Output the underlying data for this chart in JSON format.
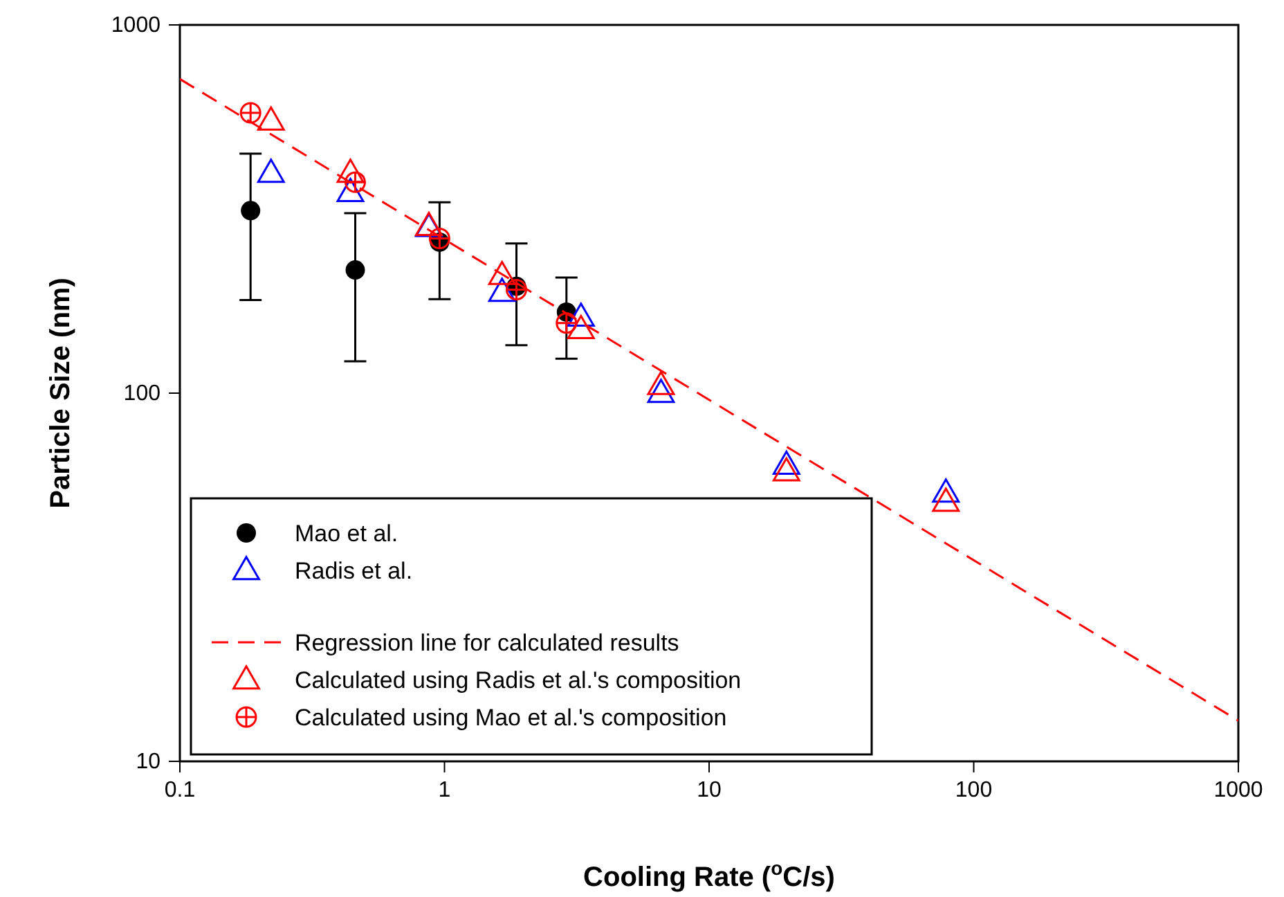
{
  "chart_data": {
    "type": "scatter",
    "xlabel": "Cooling Rate ($^{o}$C/s)",
    "ylabel": "Particle Size (nm)",
    "log": "xy",
    "xlim": [
      0.1,
      1000
    ],
    "ylim": [
      10,
      1000
    ],
    "xticks": [
      0.1,
      1,
      10,
      100,
      1000
    ],
    "yticks": [
      10,
      100,
      1000
    ],
    "grid": false,
    "legend": "bottom left",
    "series": [
      {
        "name": "Mao et al.",
        "color": "#000000",
        "marker": "circle",
        "x": [
          0.185,
          0.46,
          0.958,
          1.87,
          2.89
        ],
        "values": [
          313,
          216,
          257,
          195,
          166
        ],
        "errors": [
          [
            179,
            447
          ],
          [
            122,
            308
          ],
          [
            180,
            330
          ],
          [
            135,
            255
          ],
          [
            124,
            206
          ]
        ]
      },
      {
        "name": "Radis et al.",
        "color": "#0000ff",
        "marker": "triangle",
        "x": [
          0.221,
          0.441,
          0.873,
          1.65,
          3.28,
          6.58,
          19.6,
          78.5
        ],
        "values": [
          396,
          351,
          282,
          188,
          161,
          100,
          63.8,
          53.6
        ]
      },
      {
        "name": "Regression line for calculated results",
        "type": "line",
        "line_style": "dashed",
        "marker": "none",
        "color": "#ff0000",
        "x": [
          0.1,
          1000
        ],
        "values": [
          713,
          12.9
        ]
      },
      {
        "name": "Calculated using Radis et al.'s composition",
        "color": "#ff0000",
        "marker": "triangle",
        "x": [
          0.221,
          0.441,
          0.873,
          1.65,
          3.28,
          6.58,
          19.6,
          78.5
        ],
        "values": [
          549,
          396,
          284,
          209,
          149,
          105,
          61.2,
          50.6
        ]
      },
      {
        "name": "Calculated using Mao et al.'s composition",
        "color": "#ff0000",
        "marker": "cross",
        "x": [
          0.185,
          0.46,
          0.958,
          1.87,
          2.89
        ],
        "values": [
          577,
          374,
          263,
          191,
          155
        ]
      }
    ]
  }
}
